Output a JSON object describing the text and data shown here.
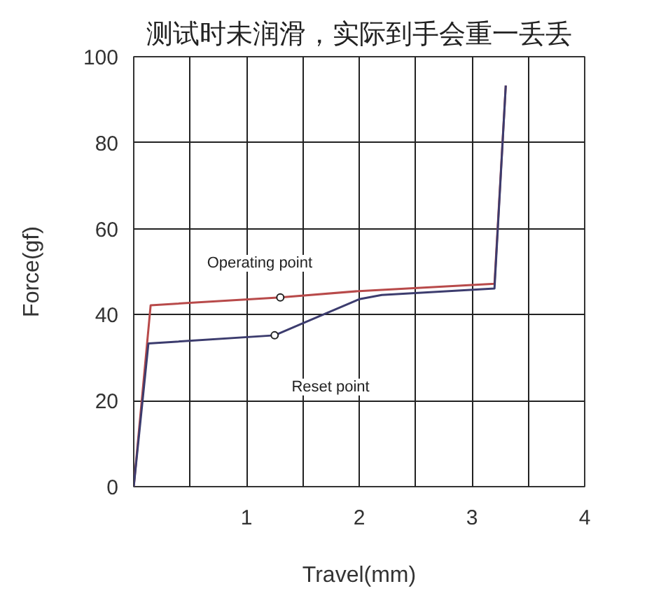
{
  "chart_data": {
    "type": "line",
    "title": "测试时未润滑，实际到手会重一丢丢",
    "xlabel": "Travel(mm)",
    "ylabel": "Force(gf)",
    "xlim": [
      0,
      4
    ],
    "ylim": [
      0,
      100
    ],
    "xticks": [
      {
        "value": 0,
        "label": null
      },
      {
        "value": 0.5,
        "label": null
      },
      1,
      {
        "value": 1.5,
        "label": null
      },
      2,
      {
        "value": 2.5,
        "label": null
      },
      3,
      {
        "value": 3.5,
        "label": null
      },
      4
    ],
    "yticks": [
      0,
      20,
      40,
      60,
      80,
      100
    ],
    "grid": true,
    "marker": "none",
    "line_style": "solid",
    "series": [
      {
        "color": "#b84a4a",
        "x": [
          0,
          0.15,
          1.3,
          2.0,
          3.2,
          3.3
        ],
        "values": [
          0,
          42.2,
          44,
          45.5,
          47.2,
          93.3
        ]
      },
      {
        "color": "#3c3c6e",
        "x": [
          0,
          0.13,
          1.25,
          1.5,
          2.0,
          2.2,
          3.2,
          3.3
        ],
        "values": [
          0,
          33.3,
          35.2,
          38,
          43.6,
          44.6,
          46.1,
          93.3
        ]
      }
    ],
    "annotations": [
      {
        "text": "Operating point",
        "x": 1.3,
        "y": 44
      },
      {
        "text": "Reset point",
        "x": 1.25,
        "y": 35.2
      }
    ]
  }
}
